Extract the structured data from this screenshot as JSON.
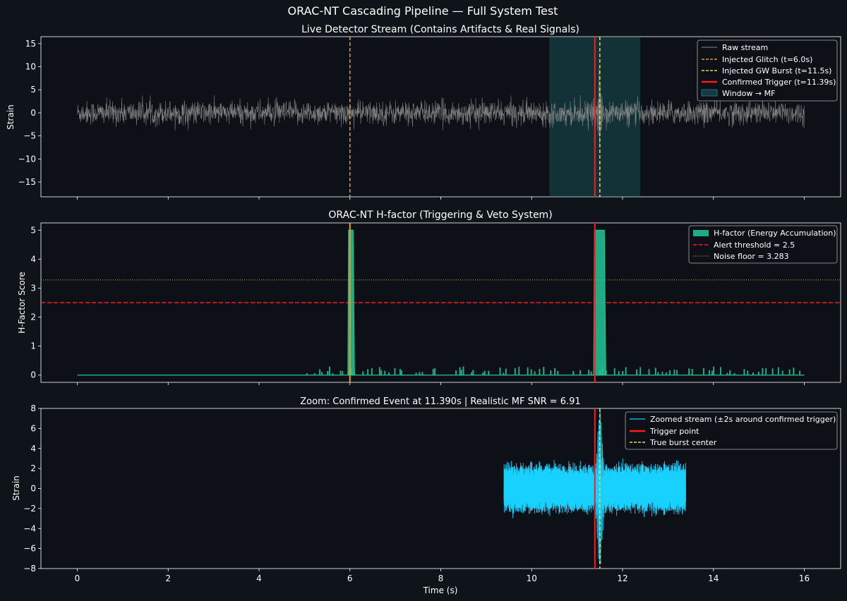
{
  "figure_title": "ORAC-NT Cascading Pipeline — Full System Test",
  "colors": {
    "background": "#0f131a",
    "raw": "#8c8c8c",
    "glitch": "#e69e1e",
    "burst": "#e6e62a",
    "trigger": "#ff1a1a",
    "window": "#1f6f74",
    "hfactor": "#23c79a",
    "noise": "#bdbd3a",
    "zoom": "#18d1ff"
  },
  "chart_data": [
    {
      "type": "line",
      "title": "Live Detector Stream (Contains Artifacts & Real Signals)",
      "xlabel": "",
      "ylabel": "Strain",
      "xlim": [
        -0.8,
        16.8
      ],
      "ylim": [
        -18.2,
        16.5
      ],
      "yticks": [
        -15,
        -10,
        -5,
        0,
        5,
        10,
        15
      ],
      "yticklabels": [
        "−15",
        "−10",
        "−5",
        "0",
        "5",
        "10",
        "15"
      ],
      "legend_position": "top-right",
      "legend": [
        "Raw stream",
        "Injected Glitch (t=6.0s)",
        "Injected GW Burst (t=11.5s)",
        "Confirmed Trigger (t=11.39s)",
        "Window → MF"
      ],
      "raw_stream": {
        "t_start": 0,
        "t_end": 16,
        "noise_amplitude": 2.8,
        "glitch_t": 6.0,
        "burst_t": 11.5,
        "burst_peak": 7.0
      },
      "injected_glitch_t": 6.0,
      "injected_burst_t": 11.5,
      "confirmed_trigger_t": 11.39,
      "window": [
        10.39,
        12.39
      ]
    },
    {
      "type": "area",
      "title": "ORAC-NT H-factor (Triggering & Veto System)",
      "xlabel": "",
      "ylabel": "H-Factor Score",
      "xlim": [
        -0.8,
        16.8
      ],
      "ylim": [
        -0.25,
        5.25
      ],
      "yticks": [
        0,
        1,
        2,
        3,
        4,
        5
      ],
      "yticklabels": [
        "0",
        "1",
        "2",
        "3",
        "4",
        "5"
      ],
      "legend_position": "top-right",
      "legend": [
        "H-factor (Energy Accumulation)",
        "Alert threshold = 2.5",
        "Noise floor = 3.283"
      ],
      "alert_threshold": 2.5,
      "noise_floor": 3.283,
      "hfactor": {
        "t_start": 0,
        "t_end": 16,
        "spike_range_start": 5.0,
        "spike_range_end": 15.8,
        "glitch_pulse": [
          5.97,
          6.07,
          5.0
        ],
        "burst_pulse": [
          11.38,
          11.6,
          5.0
        ]
      },
      "glitch_t": 6.0,
      "trigger_t": 11.39
    },
    {
      "type": "line",
      "title": "Zoom: Confirmed Event at 11.390s  |  Realistic MF SNR = 6.91",
      "xlabel": "Time (s)",
      "ylabel": "Strain",
      "xlim": [
        -0.8,
        16.8
      ],
      "ylim": [
        -8,
        8
      ],
      "xticks": [
        0,
        2,
        4,
        6,
        8,
        10,
        12,
        14,
        16
      ],
      "xticklabels": [
        "0",
        "2",
        "4",
        "6",
        "8",
        "10",
        "12",
        "14",
        "16"
      ],
      "yticks": [
        -8,
        -6,
        -4,
        -2,
        0,
        2,
        4,
        6,
        8
      ],
      "yticklabels": [
        "−8",
        "−6",
        "−4",
        "−2",
        "0",
        "2",
        "4",
        "6",
        "8"
      ],
      "legend_position": "top-right",
      "legend": [
        "Zoomed stream (±2s around confirmed trigger)",
        "Trigger point",
        "True burst center"
      ],
      "zoom_stream": {
        "t_start": 9.39,
        "t_end": 13.39,
        "noise_amplitude": 2.5,
        "burst_t": 11.5,
        "burst_peak": 7.4
      },
      "trigger_t": 11.39,
      "burst_t": 11.5
    }
  ]
}
